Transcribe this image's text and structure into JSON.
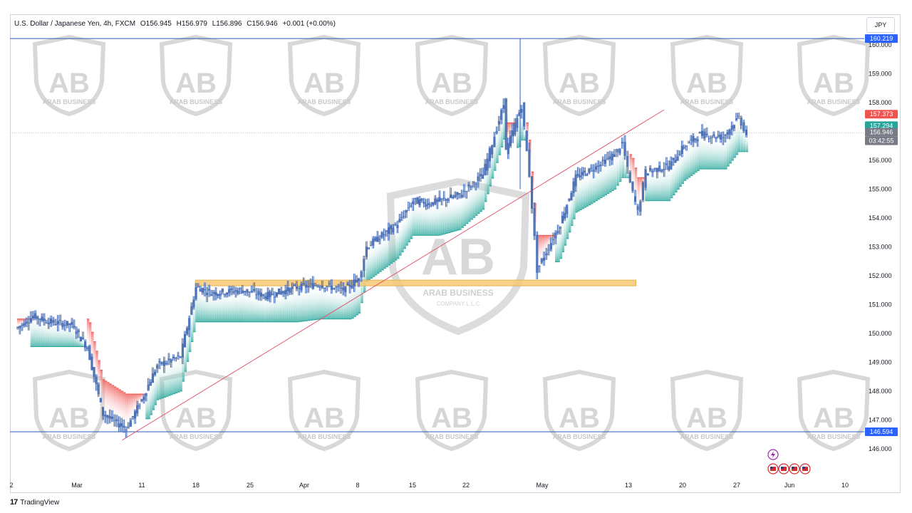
{
  "header": {
    "symbol": "U.S. Dollar / Japanese Yen, 4h, FXCM",
    "open": "O156.945",
    "high": "H156.979",
    "low": "L156.896",
    "close": "C156.946",
    "change": "+0.001 (+0.00%)"
  },
  "currency_button": "JPY",
  "footer": {
    "logo": "17",
    "brand": "TradingView"
  },
  "watermark": {
    "line1": "ARAB BUSINESS",
    "line2": "COMPANY L.L.C",
    "monogram": "AB"
  },
  "colors": {
    "candle": "#4a6fb5",
    "cloud_bull": "#26a69a",
    "cloud_bear": "#ef5350",
    "support_zone": "#f7c873",
    "trendline": "#e05b6d",
    "level_line": "#2a5bb8",
    "badge_level": "#2962ff",
    "badge_red": "#ef5350",
    "badge_green": "#26a69a",
    "badge_gray": "#787b86"
  },
  "chart_data": {
    "type": "candlestick",
    "title": "U.S. Dollar / Japanese Yen, 4h, FXCM",
    "y_axis": {
      "ticks": [
        "160.000",
        "159.000",
        "158.000",
        "157.000",
        "156.000",
        "155.000",
        "154.000",
        "153.000",
        "152.000",
        "151.000",
        "150.000",
        "149.000",
        "148.000",
        "147.000",
        "146.000"
      ],
      "range": [
        145.8,
        160.4
      ]
    },
    "x_axis": {
      "ticks": [
        "2",
        "Mar",
        "11",
        "18",
        "25",
        "Apr",
        "8",
        "15",
        "22",
        "May",
        "13",
        "20",
        "27",
        "Jun",
        "10"
      ]
    },
    "price_labels": [
      {
        "value": "160.219",
        "kind": "level"
      },
      {
        "value": "157.373",
        "kind": "red"
      },
      {
        "value": "157.294",
        "kind": "green"
      },
      {
        "value": "156.946",
        "kind": "current"
      },
      {
        "value": "03:42:55",
        "kind": "countdown"
      },
      {
        "value": "146.594",
        "kind": "level"
      }
    ],
    "horizontal_levels": [
      160.219,
      146.594
    ],
    "current_price": 156.946,
    "support_zone": {
      "from_date": "2024-03-20",
      "to_date": "2024-05-14",
      "low": 151.65,
      "high": 151.85
    },
    "trendline": {
      "start": {
        "date": "2024-03-11",
        "price": 146.3
      },
      "end": {
        "date": "2024-05-19",
        "price": 157.75
      }
    },
    "price_path": [
      {
        "date": "2024-02-26",
        "price": 150.2
      },
      {
        "date": "2024-02-28",
        "price": 150.6
      },
      {
        "date": "2024-03-01",
        "price": 150.4
      },
      {
        "date": "2024-03-04",
        "price": 150.3
      },
      {
        "date": "2024-03-06",
        "price": 149.5
      },
      {
        "date": "2024-03-08",
        "price": 147.2
      },
      {
        "date": "2024-03-11",
        "price": 146.7
      },
      {
        "date": "2024-03-13",
        "price": 147.7
      },
      {
        "date": "2024-03-15",
        "price": 148.9
      },
      {
        "date": "2024-03-18",
        "price": 149.2
      },
      {
        "date": "2024-03-20",
        "price": 151.6
      },
      {
        "date": "2024-03-22",
        "price": 151.4
      },
      {
        "date": "2024-03-26",
        "price": 151.5
      },
      {
        "date": "2024-03-29",
        "price": 151.3
      },
      {
        "date": "2024-04-02",
        "price": 151.6
      },
      {
        "date": "2024-04-05",
        "price": 151.7
      },
      {
        "date": "2024-04-08",
        "price": 151.5
      },
      {
        "date": "2024-04-10",
        "price": 151.9
      },
      {
        "date": "2024-04-11",
        "price": 153.0
      },
      {
        "date": "2024-04-15",
        "price": 153.8
      },
      {
        "date": "2024-04-17",
        "price": 154.6
      },
      {
        "date": "2024-04-19",
        "price": 154.5
      },
      {
        "date": "2024-04-23",
        "price": 154.8
      },
      {
        "date": "2024-04-26",
        "price": 155.5
      },
      {
        "date": "2024-04-29",
        "price": 158.2
      },
      {
        "date": "2024-04-29",
        "price": 156.3
      },
      {
        "date": "2024-05-01",
        "price": 157.9
      },
      {
        "date": "2024-05-02",
        "price": 155.5
      },
      {
        "date": "2024-05-03",
        "price": 152.2
      },
      {
        "date": "2024-05-06",
        "price": 153.8
      },
      {
        "date": "2024-05-08",
        "price": 155.4
      },
      {
        "date": "2024-05-10",
        "price": 155.7
      },
      {
        "date": "2024-05-13",
        "price": 156.2
      },
      {
        "date": "2024-05-14",
        "price": 156.6
      },
      {
        "date": "2024-05-15",
        "price": 155.2
      },
      {
        "date": "2024-05-16",
        "price": 154.2
      },
      {
        "date": "2024-05-17",
        "price": 155.6
      },
      {
        "date": "2024-05-20",
        "price": 155.8
      },
      {
        "date": "2024-05-22",
        "price": 156.5
      },
      {
        "date": "2024-05-24",
        "price": 156.9
      },
      {
        "date": "2024-05-27",
        "price": 156.8
      },
      {
        "date": "2024-05-29",
        "price": 157.5
      },
      {
        "date": "2024-05-30",
        "price": 156.9
      }
    ]
  }
}
